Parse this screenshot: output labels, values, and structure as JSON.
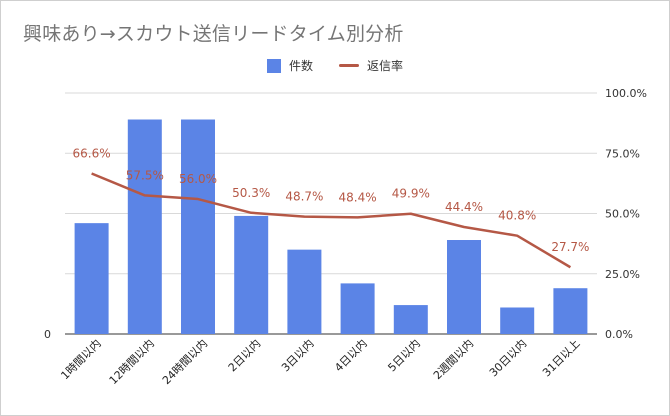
{
  "chart_data": {
    "type": "bar",
    "title": "興味あり→スカウト送信リードタイム別分析",
    "categories": [
      "1時間以内",
      "12時間以内",
      "24時間以内",
      "2日以内",
      "3日以内",
      "4日以内",
      "5日以内",
      "2週間以内",
      "30日以内",
      "31日以上"
    ],
    "series": [
      {
        "name": "件数",
        "type": "bar",
        "axis": "left",
        "color": "#5b84e6",
        "values": [
          46,
          89,
          89,
          49,
          35,
          21,
          12,
          39,
          11,
          19
        ]
      },
      {
        "name": "返信率",
        "type": "line",
        "axis": "right",
        "color": "#b55846",
        "values": [
          66.6,
          57.5,
          56.0,
          50.3,
          48.7,
          48.4,
          49.9,
          44.4,
          40.8,
          27.7
        ],
        "labels": [
          "66.6%",
          "57.5%",
          "56.0%",
          "50.3%",
          "48.7%",
          "48.4%",
          "49.9%",
          "44.4%",
          "40.8%",
          "27.7%"
        ]
      }
    ],
    "y_left": {
      "ylim": [
        0,
        100
      ],
      "ticks": [
        "0"
      ]
    },
    "y_right": {
      "ylim": [
        0,
        100
      ],
      "ticks": [
        "0.0%",
        "25.0%",
        "50.0%",
        "75.0%",
        "100.0%"
      ]
    },
    "grid": true,
    "legend": "top-center"
  }
}
